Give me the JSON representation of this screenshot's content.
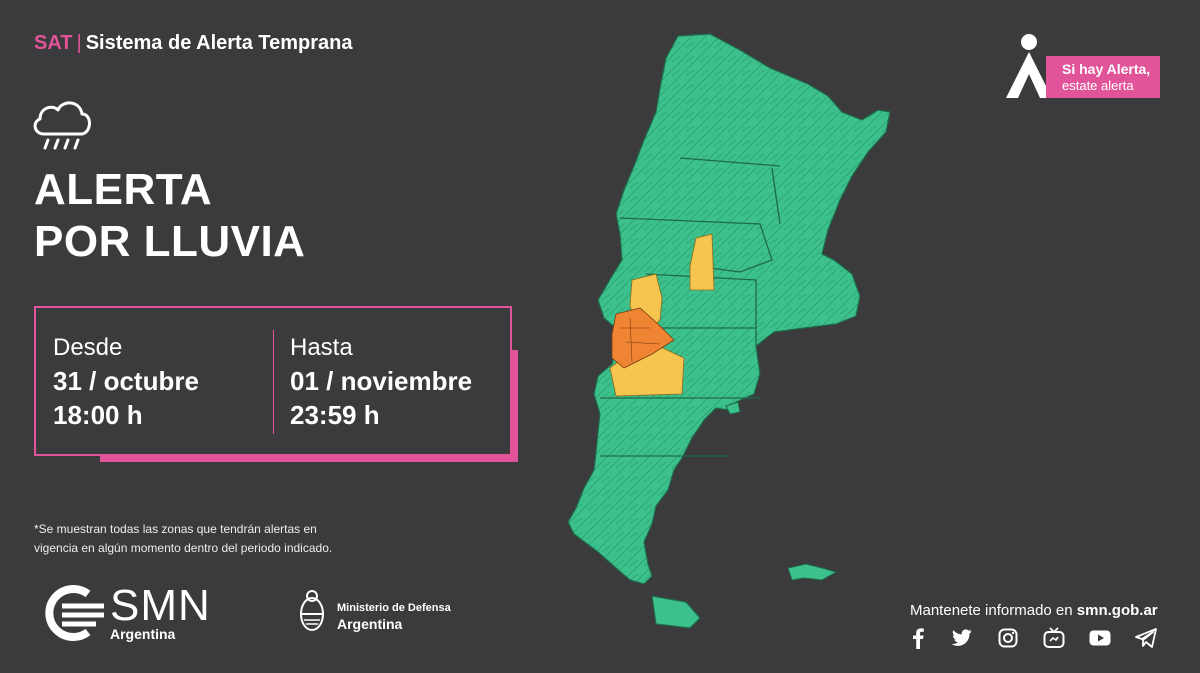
{
  "header": {
    "brand": "SAT",
    "separator": "|",
    "system": "Sistema de Alerta Temprana"
  },
  "alert": {
    "icon": "rain-cloud-icon",
    "title_line1": "ALERTA",
    "title_line2": "POR LLUVIA"
  },
  "period": {
    "from_label": "Desde",
    "from_date": "31 / octubre",
    "from_time": "18:00 h",
    "to_label": "Hasta",
    "to_date": "01 / noviembre",
    "to_time": "23:59 h"
  },
  "footnote": {
    "line1": "*Se muestran todas las zonas que tendrán alertas en",
    "line2": "vigencia en algún momento dentro del periodo indicado."
  },
  "smn": {
    "name": "SMN",
    "sub": "Argentina"
  },
  "ministry": {
    "line1": "Ministerio de Defensa",
    "line2": "Argentina"
  },
  "badge": {
    "line1": "Si hay Alerta,",
    "line2": "estate alerta"
  },
  "social": {
    "prefix": "Mantenete informado en",
    "site": "smn.gob.ar",
    "icons": [
      "facebook-icon",
      "twitter-icon",
      "instagram-icon",
      "tv-icon",
      "youtube-icon",
      "telegram-icon"
    ]
  },
  "colors": {
    "background": "#3b3a3c",
    "accent": "#e2549a",
    "green": "#3cc08c",
    "yellow": "#f6c54f",
    "orange": "#ef8433"
  }
}
